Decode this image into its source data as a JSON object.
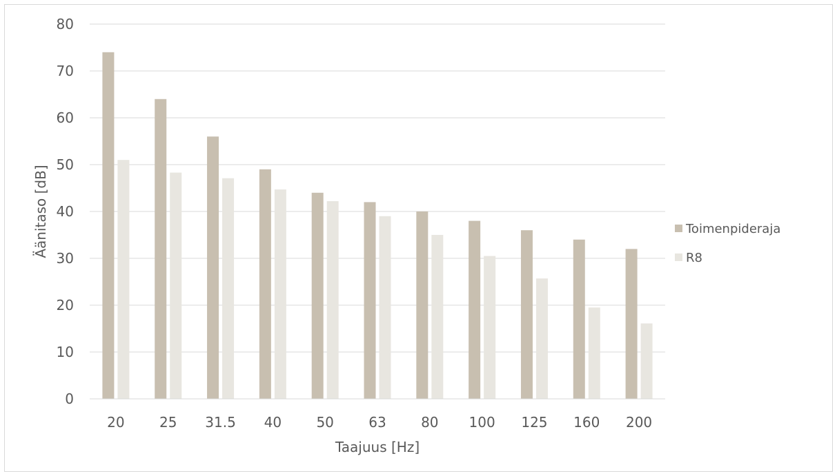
{
  "chart_data": {
    "type": "bar",
    "title": "",
    "xlabel": "Taajuus [Hz]",
    "ylabel": "Äänitaso [dB]",
    "ylim": [
      0,
      80
    ],
    "y_ticks": [
      "0",
      "10",
      "20",
      "30",
      "40",
      "50",
      "60",
      "70",
      "80"
    ],
    "categories": [
      "20",
      "25",
      "31.5",
      "40",
      "50",
      "63",
      "80",
      "100",
      "125",
      "160",
      "200"
    ],
    "series": [
      {
        "name": "Toimenpideraja",
        "color": "#c8bfb0",
        "values": [
          74,
          64,
          56,
          49,
          44,
          42,
          40,
          38,
          36,
          34,
          32
        ]
      },
      {
        "name": "R8",
        "color": "#e8e6e0",
        "values": [
          51,
          48.3,
          47.1,
          44.7,
          42.2,
          39,
          35,
          30.5,
          25.7,
          19.5,
          16.1
        ]
      }
    ],
    "grid": true,
    "legend_position": "right"
  }
}
